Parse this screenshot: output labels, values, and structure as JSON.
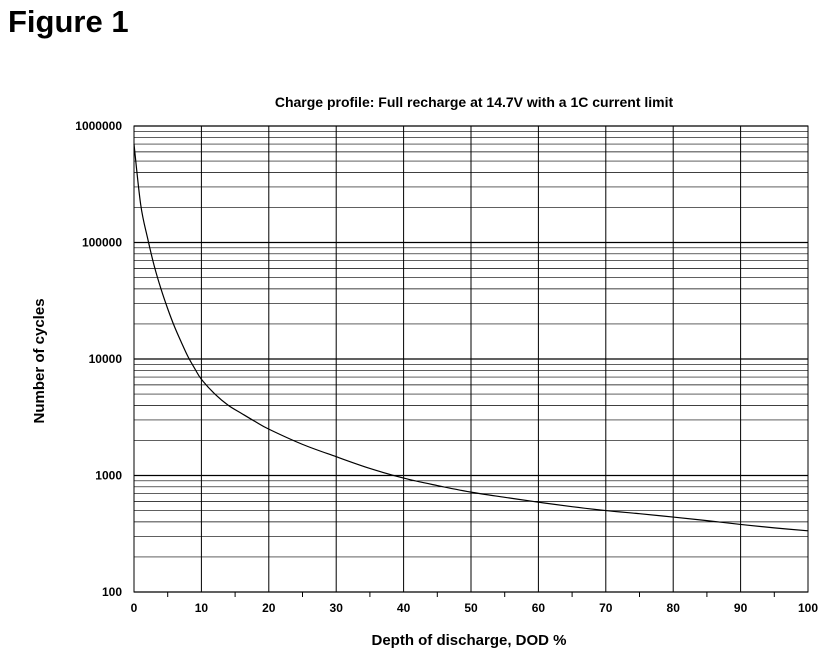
{
  "figure_label": "Figure 1",
  "chart_data": {
    "type": "line",
    "title": "Charge profile: Full recharge at 14.7V with a 1C current limit",
    "xlabel": "Depth of discharge, DOD %",
    "ylabel": "Number of cycles",
    "xlim": [
      0,
      100
    ],
    "ylim": [
      100,
      1000000
    ],
    "yscale": "log",
    "grid": true,
    "x_ticks": [
      "0",
      "10",
      "20",
      "30",
      "40",
      "50",
      "60",
      "70",
      "80",
      "90",
      "100"
    ],
    "y_ticks": [
      "100",
      "1000",
      "10000",
      "100000",
      "1000000"
    ],
    "series": [
      {
        "x": [
          0,
          1,
          2,
          3,
          4,
          5,
          6,
          7,
          8,
          9,
          10,
          12,
          14,
          16,
          18,
          20,
          25,
          30,
          35,
          40,
          45,
          50,
          55,
          60,
          65,
          70,
          75,
          80,
          85,
          90,
          95,
          100
        ],
        "values": [
          700000,
          210000,
          110000,
          63000,
          40000,
          27000,
          19000,
          14000,
          10500,
          8300,
          6700,
          5000,
          4000,
          3400,
          2900,
          2500,
          1850,
          1450,
          1150,
          950,
          820,
          720,
          650,
          590,
          540,
          500,
          470,
          440,
          410,
          380,
          355,
          335
        ]
      }
    ]
  }
}
